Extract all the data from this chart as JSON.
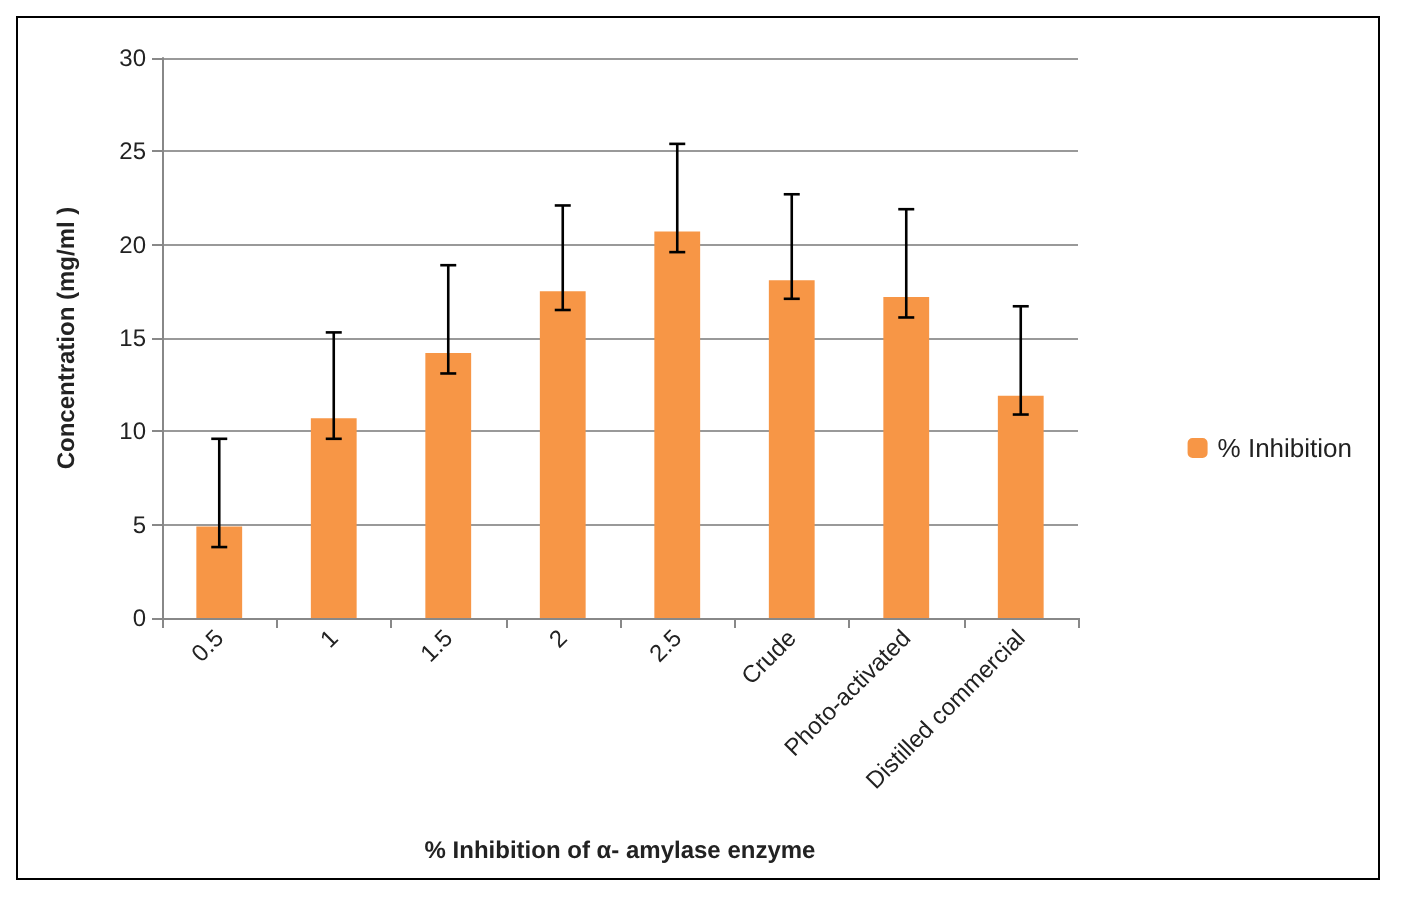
{
  "chart_data": {
    "type": "bar",
    "xlabel": "% Inhibition of α- amylase enzyme",
    "ylabel": "Concentration (mg/ml )",
    "categories": [
      "0.5",
      "1",
      "1.5",
      "2",
      "2.5",
      "Crude",
      "Photo-activated",
      "Distilled commercial"
    ],
    "series": [
      {
        "name": "% Inhibition",
        "color": "#f79646",
        "values": [
          4.9,
          10.7,
          14.2,
          17.5,
          20.7,
          18.1,
          17.2,
          11.9
        ],
        "errors": [
          [
            3.8,
            9.6
          ],
          [
            9.6,
            15.3
          ],
          [
            13.1,
            18.9
          ],
          [
            16.5,
            22.1
          ],
          [
            19.6,
            25.4
          ],
          [
            17.1,
            22.7
          ],
          [
            16.1,
            21.9
          ],
          [
            10.9,
            16.7
          ]
        ]
      }
    ],
    "ylim": [
      0,
      30
    ],
    "yticks": [
      0,
      5,
      10,
      15,
      20,
      25,
      30
    ],
    "grid": "y",
    "legend": "right"
  }
}
